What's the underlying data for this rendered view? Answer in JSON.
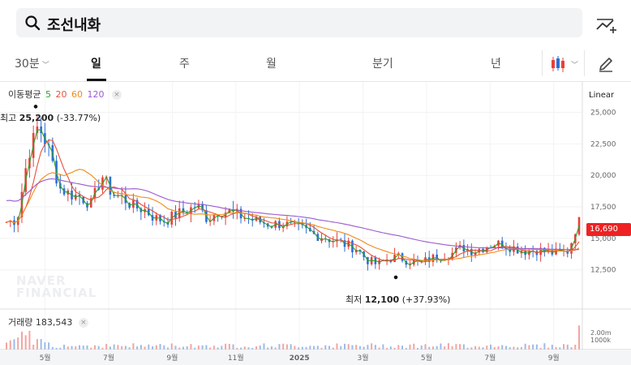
{
  "search": {
    "query": "조선내화"
  },
  "tabs": {
    "minute": "30분",
    "day": "일",
    "week": "주",
    "month": "월",
    "quarter": "분기",
    "year": "년"
  },
  "legend": {
    "ma_title": "이동평균",
    "ma5": "5",
    "ma20": "20",
    "ma60": "60",
    "ma120": "120",
    "scale": "Linear",
    "close_glyph": "×",
    "volume_title": "거래량",
    "volume_value": "183,543"
  },
  "annotations": {
    "high_prefix": "최고",
    "high_value": "25,200",
    "high_change": "(-33.77%)",
    "low_prefix": "최저",
    "low_value": "12,100",
    "low_change": "(+37.93%)",
    "current_price": "16,690"
  },
  "watermark": {
    "line1": "NAVER",
    "line2": "FINANCIAL"
  },
  "colors": {
    "ma5": "#2ca02c",
    "ma20": "#e8503a",
    "ma60": "#f08a1a",
    "ma120": "#9b59d0",
    "up": "#e8413a",
    "down": "#2b6fd6"
  },
  "chart_data": {
    "type": "candlestick",
    "y_ticks": [
      "25,000",
      "22,500",
      "20,000",
      "17,500",
      "15,000",
      "12,500"
    ],
    "y_tick_values": [
      25000,
      22500,
      20000,
      17500,
      15000,
      12500
    ],
    "ylim": [
      11000,
      26000
    ],
    "volume_ticks": [
      "2.00m",
      "1000k"
    ],
    "x_labels": [
      "5월",
      "7월",
      "9월",
      "11월",
      "2025",
      "3월",
      "5월",
      "7월",
      "9월"
    ],
    "x_label_positions": [
      0.5,
      2.5,
      4.5,
      6.5,
      8.5,
      10.5,
      12.5,
      14.5,
      16.5
    ],
    "x_range": [
      0,
      17.4
    ],
    "high": 25200,
    "low": 12100,
    "last": 16690,
    "close_series": [
      16300,
      16500,
      21500,
      24000,
      22000,
      19000,
      18500,
      18300,
      17700,
      20000,
      18500,
      18200,
      17500,
      17300,
      16600,
      16400,
      16900,
      17200,
      17600,
      16500,
      17200,
      17100,
      16800,
      16500,
      16300,
      16100,
      16200,
      15900,
      15700,
      15300,
      15100,
      14800,
      14500,
      14200,
      13300,
      12900,
      13400,
      13500,
      13200,
      13000,
      13400,
      13600,
      13800,
      14300,
      14000,
      14300,
      14600,
      14500,
      14200,
      14000,
      14100,
      13900,
      13800,
      14000,
      16690
    ]
  }
}
